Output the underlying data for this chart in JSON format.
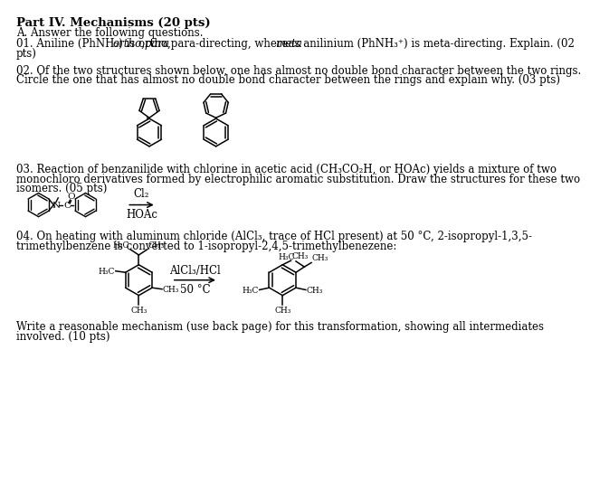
{
  "background_color": "#ffffff",
  "title_text": "Part IV. Mechanisms (20 pts)",
  "subtitle_text": "A. Answer the following questions.",
  "q1_line1": "01. Aniline (PhNH₂) is ortho,para-directing, whereas anilinium (PhNH₃⁺) is meta-directing. Explain. (02",
  "q1_line2": "pts)",
  "q2_line1": "02. Of the two structures shown below, one has almost no double bond character between the two rings.",
  "q2_line2": "Circle the one that has almost no double bond character between the rings and explain why. (03 pts)",
  "q3_line1": "03. Reaction of benzanilide with chlorine in acetic acid (CH₃CO₂H, or HOAc) yields a mixture of two",
  "q3_line2": "monochloro derivatives formed by electrophilic aromatic substitution. Draw the structures for these two",
  "q3_line3": "isomers. (05 pts)",
  "q4_line1": "04. On heating with aluminum chloride (AlCl₃, trace of HCl present) at 50 °C, 2-isopropyl-1,3,5-",
  "q4_line2": "trimethylbenzene is converted to 1-isopropyl-2,4,5-trimethylbenezene:",
  "q4_reagent1": "AlCl₃/HCl",
  "q4_reagent2": "50 °C",
  "q3_reagent1": "Cl₂",
  "q3_reagent2": "HOAc",
  "footer1": "Write a reasonable mechanism (use back page) for this transformation, showing all intermediates",
  "footer2": "involved. (10 pts)",
  "font_size_title": 9.5,
  "font_size_body": 8.5,
  "font_size_chem": 7.5,
  "font_size_small": 6.5,
  "text_color": "#000000",
  "line_color": "#000000"
}
